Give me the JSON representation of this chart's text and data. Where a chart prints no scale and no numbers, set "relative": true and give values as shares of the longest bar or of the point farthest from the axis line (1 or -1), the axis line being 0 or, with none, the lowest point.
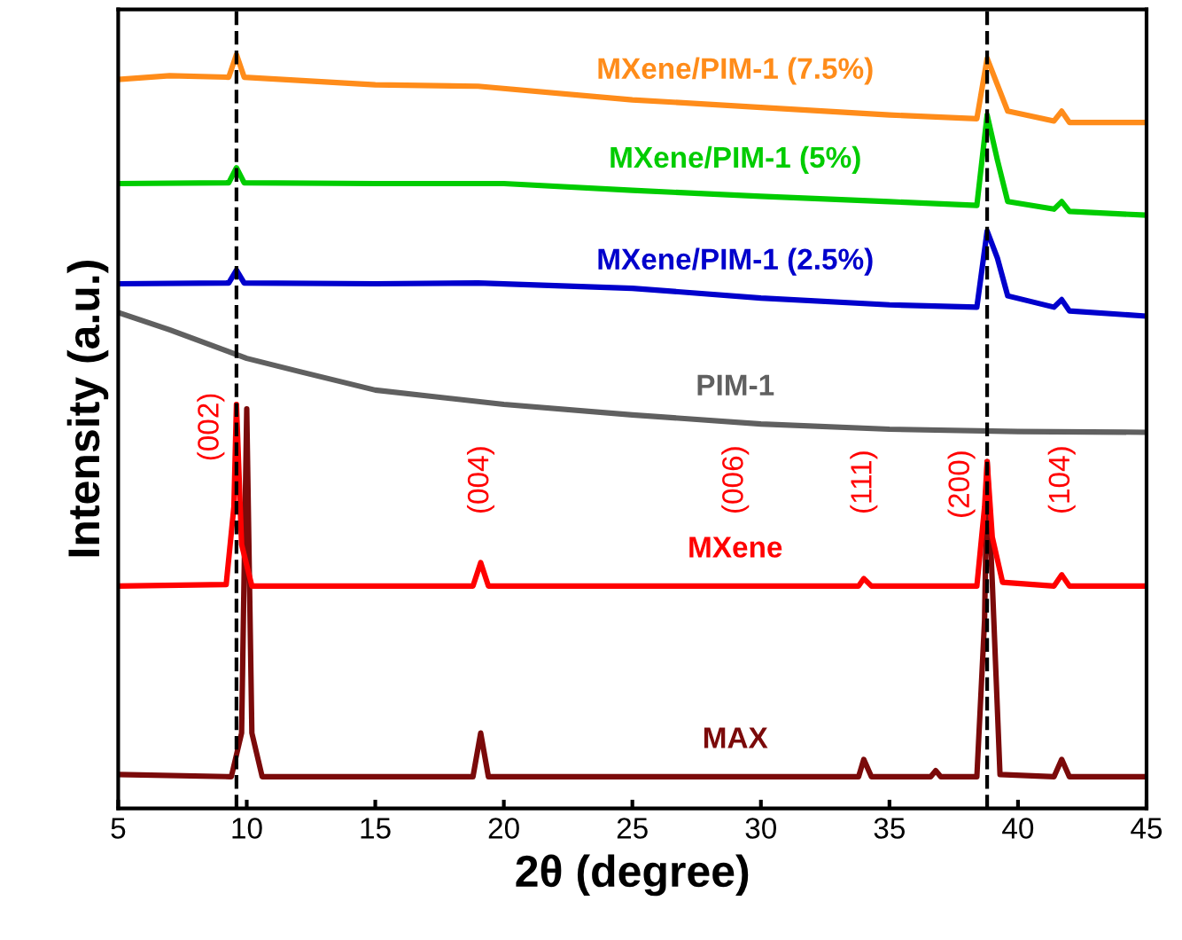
{
  "chart_data": {
    "type": "line",
    "relative": true,
    "xlabel": "2θ (degree)",
    "ylabel": "Intensity (a.u.)",
    "xlim": [
      5,
      45
    ],
    "xticks": [
      5,
      10,
      15,
      20,
      25,
      30,
      35,
      40,
      45
    ],
    "legend": false,
    "grid": false,
    "line_style": "solid",
    "marker": "none",
    "series": [
      {
        "name": "MAX",
        "color": "#7b0a0a",
        "x": [
          5,
          9.4,
          9.8,
          10.0,
          10.2,
          10.6,
          18.8,
          19.1,
          19.4,
          33.8,
          34.0,
          34.3,
          36.6,
          36.8,
          37.0,
          38.4,
          38.7,
          38.8,
          39.0,
          39.3,
          41.4,
          41.7,
          42.0,
          45
        ],
        "values": [
          0.045,
          0.042,
          0.1,
          0.53,
          0.1,
          0.042,
          0.042,
          0.1,
          0.042,
          0.042,
          0.065,
          0.042,
          0.042,
          0.05,
          0.042,
          0.042,
          0.25,
          0.46,
          0.3,
          0.045,
          0.042,
          0.065,
          0.042,
          0.042
        ]
      },
      {
        "name": "MXene",
        "color": "#ff0000",
        "x": [
          5,
          9.2,
          9.5,
          9.6,
          9.8,
          10.2,
          18.8,
          19.1,
          19.4,
          29,
          33.8,
          34.0,
          34.3,
          38.4,
          38.7,
          38.8,
          39.0,
          39.4,
          41.4,
          41.7,
          42.0,
          45
        ],
        "values": [
          0.295,
          0.297,
          0.4,
          0.536,
          0.35,
          0.295,
          0.295,
          0.326,
          0.295,
          0.295,
          0.295,
          0.305,
          0.295,
          0.295,
          0.4,
          0.46,
          0.36,
          0.3,
          0.295,
          0.31,
          0.295,
          0.295
        ]
      },
      {
        "name": "PIM-1",
        "color": "#606060",
        "x": [
          5,
          7,
          10,
          12,
          15,
          20,
          25,
          30,
          35,
          40,
          45
        ],
        "values": [
          0.658,
          0.635,
          0.597,
          0.58,
          0.555,
          0.536,
          0.522,
          0.51,
          0.503,
          0.5,
          0.499
        ]
      },
      {
        "name": "MXene/PIM-1 (2.5%)",
        "color": "#0000cc",
        "x": [
          5,
          9.3,
          9.6,
          9.9,
          15,
          19,
          25,
          30,
          35,
          38.4,
          38.8,
          39.2,
          39.6,
          41.4,
          41.7,
          42.0,
          45
        ],
        "values": [
          0.696,
          0.697,
          0.714,
          0.697,
          0.696,
          0.697,
          0.69,
          0.677,
          0.668,
          0.665,
          0.766,
          0.73,
          0.68,
          0.665,
          0.675,
          0.66,
          0.653
        ]
      },
      {
        "name": "MXene/PIM-1 (5%)",
        "color": "#00cc00",
        "x": [
          5,
          9.3,
          9.6,
          9.9,
          15,
          20,
          25,
          30,
          35,
          38.4,
          38.8,
          39.2,
          39.6,
          41.4,
          41.7,
          42.0,
          45
        ],
        "values": [
          0.829,
          0.83,
          0.85,
          0.83,
          0.829,
          0.829,
          0.82,
          0.812,
          0.805,
          0.8,
          0.92,
          0.86,
          0.805,
          0.795,
          0.805,
          0.792,
          0.787
        ]
      },
      {
        "name": "MXene/PIM-1 (7.5%)",
        "color": "#ff8c1a",
        "x": [
          5,
          7,
          9.3,
          9.6,
          9.9,
          15,
          19,
          25,
          30,
          35,
          38.4,
          38.8,
          39.2,
          39.6,
          41.4,
          41.7,
          42.0,
          45
        ],
        "values": [
          0.967,
          0.972,
          0.97,
          1.0,
          0.97,
          0.96,
          0.958,
          0.94,
          0.93,
          0.92,
          0.915,
          0.995,
          0.96,
          0.925,
          0.912,
          0.925,
          0.91,
          0.91
        ]
      }
    ],
    "ref_lines": [
      {
        "axis": "x",
        "value": 9.6,
        "color": "#000000",
        "line_style": "dashed"
      },
      {
        "axis": "x",
        "value": 38.8,
        "color": "#000000",
        "line_style": "dashed"
      }
    ],
    "annotations": [
      {
        "text": "(002)",
        "x": 9.6,
        "y": 0.536
      },
      {
        "text": "(004)",
        "x": 19.1,
        "y": 0.326
      },
      {
        "text": "(006)",
        "x": 29,
        "y": 0.295
      },
      {
        "text": "(111)",
        "x": 34.0,
        "y": 0.305
      },
      {
        "text": "(200)",
        "x": 38.8,
        "y": 0.46
      },
      {
        "text": "(104)",
        "x": 41.7,
        "y": 0.31
      }
    ]
  }
}
